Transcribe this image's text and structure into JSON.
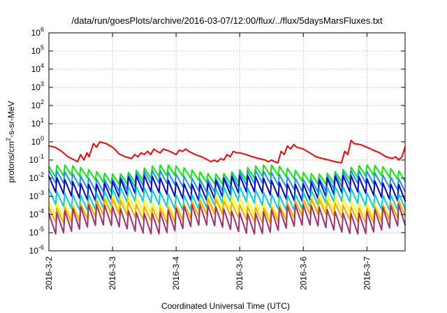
{
  "chart_data": {
    "type": "line",
    "title": "/data/run/goesPlots/archive/2016-03-07/12:00/flux/../flux/5daysMarsFluxes.txt",
    "xlabel": "Coordinated Universal Time (UTC)",
    "ylabel": "protons/cm2-s-sr-MeV",
    "ylabel_parts": {
      "pre": "protons/cm",
      "sup": "2",
      "post": "-s-sr-MeV"
    },
    "yscale": "log",
    "ylim": [
      1e-06,
      1000000.0
    ],
    "y_tick_labels": [
      {
        "base": "10",
        "exp": "-6"
      },
      {
        "base": "10",
        "exp": "-5"
      },
      {
        "base": "10",
        "exp": "-4"
      },
      {
        "base": "10",
        "exp": "-3"
      },
      {
        "base": "10",
        "exp": "-2"
      },
      {
        "base": "10",
        "exp": "-1"
      },
      {
        "base": "10",
        "exp": "0"
      },
      {
        "base": "10",
        "exp": "1"
      },
      {
        "base": "10",
        "exp": "2"
      },
      {
        "base": "10",
        "exp": "3"
      },
      {
        "base": "10",
        "exp": "4"
      },
      {
        "base": "10",
        "exp": "5"
      },
      {
        "base": "10",
        "exp": "6"
      }
    ],
    "xlim_days": [
      0,
      5.6
    ],
    "x_ticks": [
      {
        "label": "2016-3-2",
        "day": 0
      },
      {
        "label": "2016-3-3",
        "day": 1
      },
      {
        "label": "2016-3-4",
        "day": 2
      },
      {
        "label": "2016-3-5",
        "day": 3
      },
      {
        "label": "2016-3-6",
        "day": 4
      },
      {
        "label": "2016-3-7",
        "day": 5
      }
    ],
    "grid": true,
    "series": [
      {
        "color": "#ff0000",
        "points": [
          [
            0,
            0.6
          ],
          [
            0.1,
            0.5
          ],
          [
            0.2,
            0.3
          ],
          [
            0.3,
            0.15
          ],
          [
            0.4,
            0.1
          ],
          [
            0.45,
            0.08
          ],
          [
            0.5,
            0.2
          ],
          [
            0.55,
            0.1
          ],
          [
            0.6,
            0.25
          ],
          [
            0.63,
            0.15
          ],
          [
            0.7,
            0.8
          ],
          [
            0.75,
            0.5
          ],
          [
            0.8,
            1.0
          ],
          [
            0.9,
            0.8
          ],
          [
            1.0,
            0.5
          ],
          [
            1.05,
            0.35
          ],
          [
            1.1,
            0.22
          ],
          [
            1.2,
            0.15
          ],
          [
            1.3,
            0.12
          ],
          [
            1.35,
            0.2
          ],
          [
            1.4,
            0.15
          ],
          [
            1.45,
            0.25
          ],
          [
            1.5,
            0.2
          ],
          [
            1.55,
            0.3
          ],
          [
            1.6,
            0.2
          ],
          [
            1.65,
            0.4
          ],
          [
            1.7,
            0.3
          ],
          [
            1.75,
            0.25
          ],
          [
            1.8,
            0.4
          ],
          [
            1.9,
            0.3
          ],
          [
            2.0,
            0.2
          ],
          [
            2.05,
            0.35
          ],
          [
            2.1,
            0.3
          ],
          [
            2.15,
            0.4
          ],
          [
            2.2,
            0.3
          ],
          [
            2.3,
            0.2
          ],
          [
            2.4,
            0.15
          ],
          [
            2.5,
            0.1
          ],
          [
            2.55,
            0.08
          ],
          [
            2.6,
            0.1
          ],
          [
            2.65,
            0.08
          ],
          [
            2.7,
            0.12
          ],
          [
            2.75,
            0.1
          ],
          [
            2.8,
            0.2
          ],
          [
            2.85,
            0.15
          ],
          [
            2.9,
            0.3
          ],
          [
            2.95,
            0.25
          ],
          [
            3.0,
            0.25
          ],
          [
            3.1,
            0.2
          ],
          [
            3.2,
            0.15
          ],
          [
            3.3,
            0.12
          ],
          [
            3.4,
            0.1
          ],
          [
            3.45,
            0.08
          ],
          [
            3.5,
            0.1
          ],
          [
            3.55,
            0.08
          ],
          [
            3.6,
            0.07
          ],
          [
            3.65,
            0.3
          ],
          [
            3.7,
            0.2
          ],
          [
            3.75,
            0.6
          ],
          [
            3.8,
            0.4
          ],
          [
            3.85,
            0.7
          ],
          [
            3.9,
            0.5
          ],
          [
            4.0,
            0.4
          ],
          [
            4.1,
            0.25
          ],
          [
            4.2,
            0.15
          ],
          [
            4.3,
            0.12
          ],
          [
            4.4,
            0.1
          ],
          [
            4.5,
            0.08
          ],
          [
            4.6,
            0.07
          ],
          [
            4.65,
            0.3
          ],
          [
            4.7,
            0.2
          ],
          [
            4.75,
            1.2
          ],
          [
            4.8,
            0.8
          ],
          [
            4.9,
            0.7
          ],
          [
            5.0,
            0.5
          ],
          [
            5.1,
            0.35
          ],
          [
            5.2,
            0.25
          ],
          [
            5.3,
            0.15
          ],
          [
            5.4,
            0.12
          ],
          [
            5.45,
            0.15
          ],
          [
            5.5,
            0.1
          ],
          [
            5.55,
            0.15
          ],
          [
            5.6,
            0.5
          ]
        ]
      },
      {
        "color": "#00ee00",
        "base": 0.015,
        "peak": 0.03,
        "trough": 0.008
      },
      {
        "color": "#1e90ff",
        "base": 0.008,
        "peak": 0.015,
        "trough": 0.003
      },
      {
        "color": "#0000cd",
        "base": 0.003,
        "peak": 0.008,
        "trough": 0.001
      },
      {
        "color": "#00ced1",
        "base": 0.0008,
        "peak": 0.002,
        "trough": 0.0003
      },
      {
        "color": "#ffff00",
        "base": 0.00025,
        "peak": 0.0006,
        "trough": 0.0001
      },
      {
        "color": "#ffa500",
        "base": 0.00015,
        "peak": 0.0004,
        "trough": 6e-05
      },
      {
        "color": "#a0306f",
        "base": 5e-05,
        "peak": 0.0002,
        "trough": 1.5e-05
      }
    ]
  }
}
